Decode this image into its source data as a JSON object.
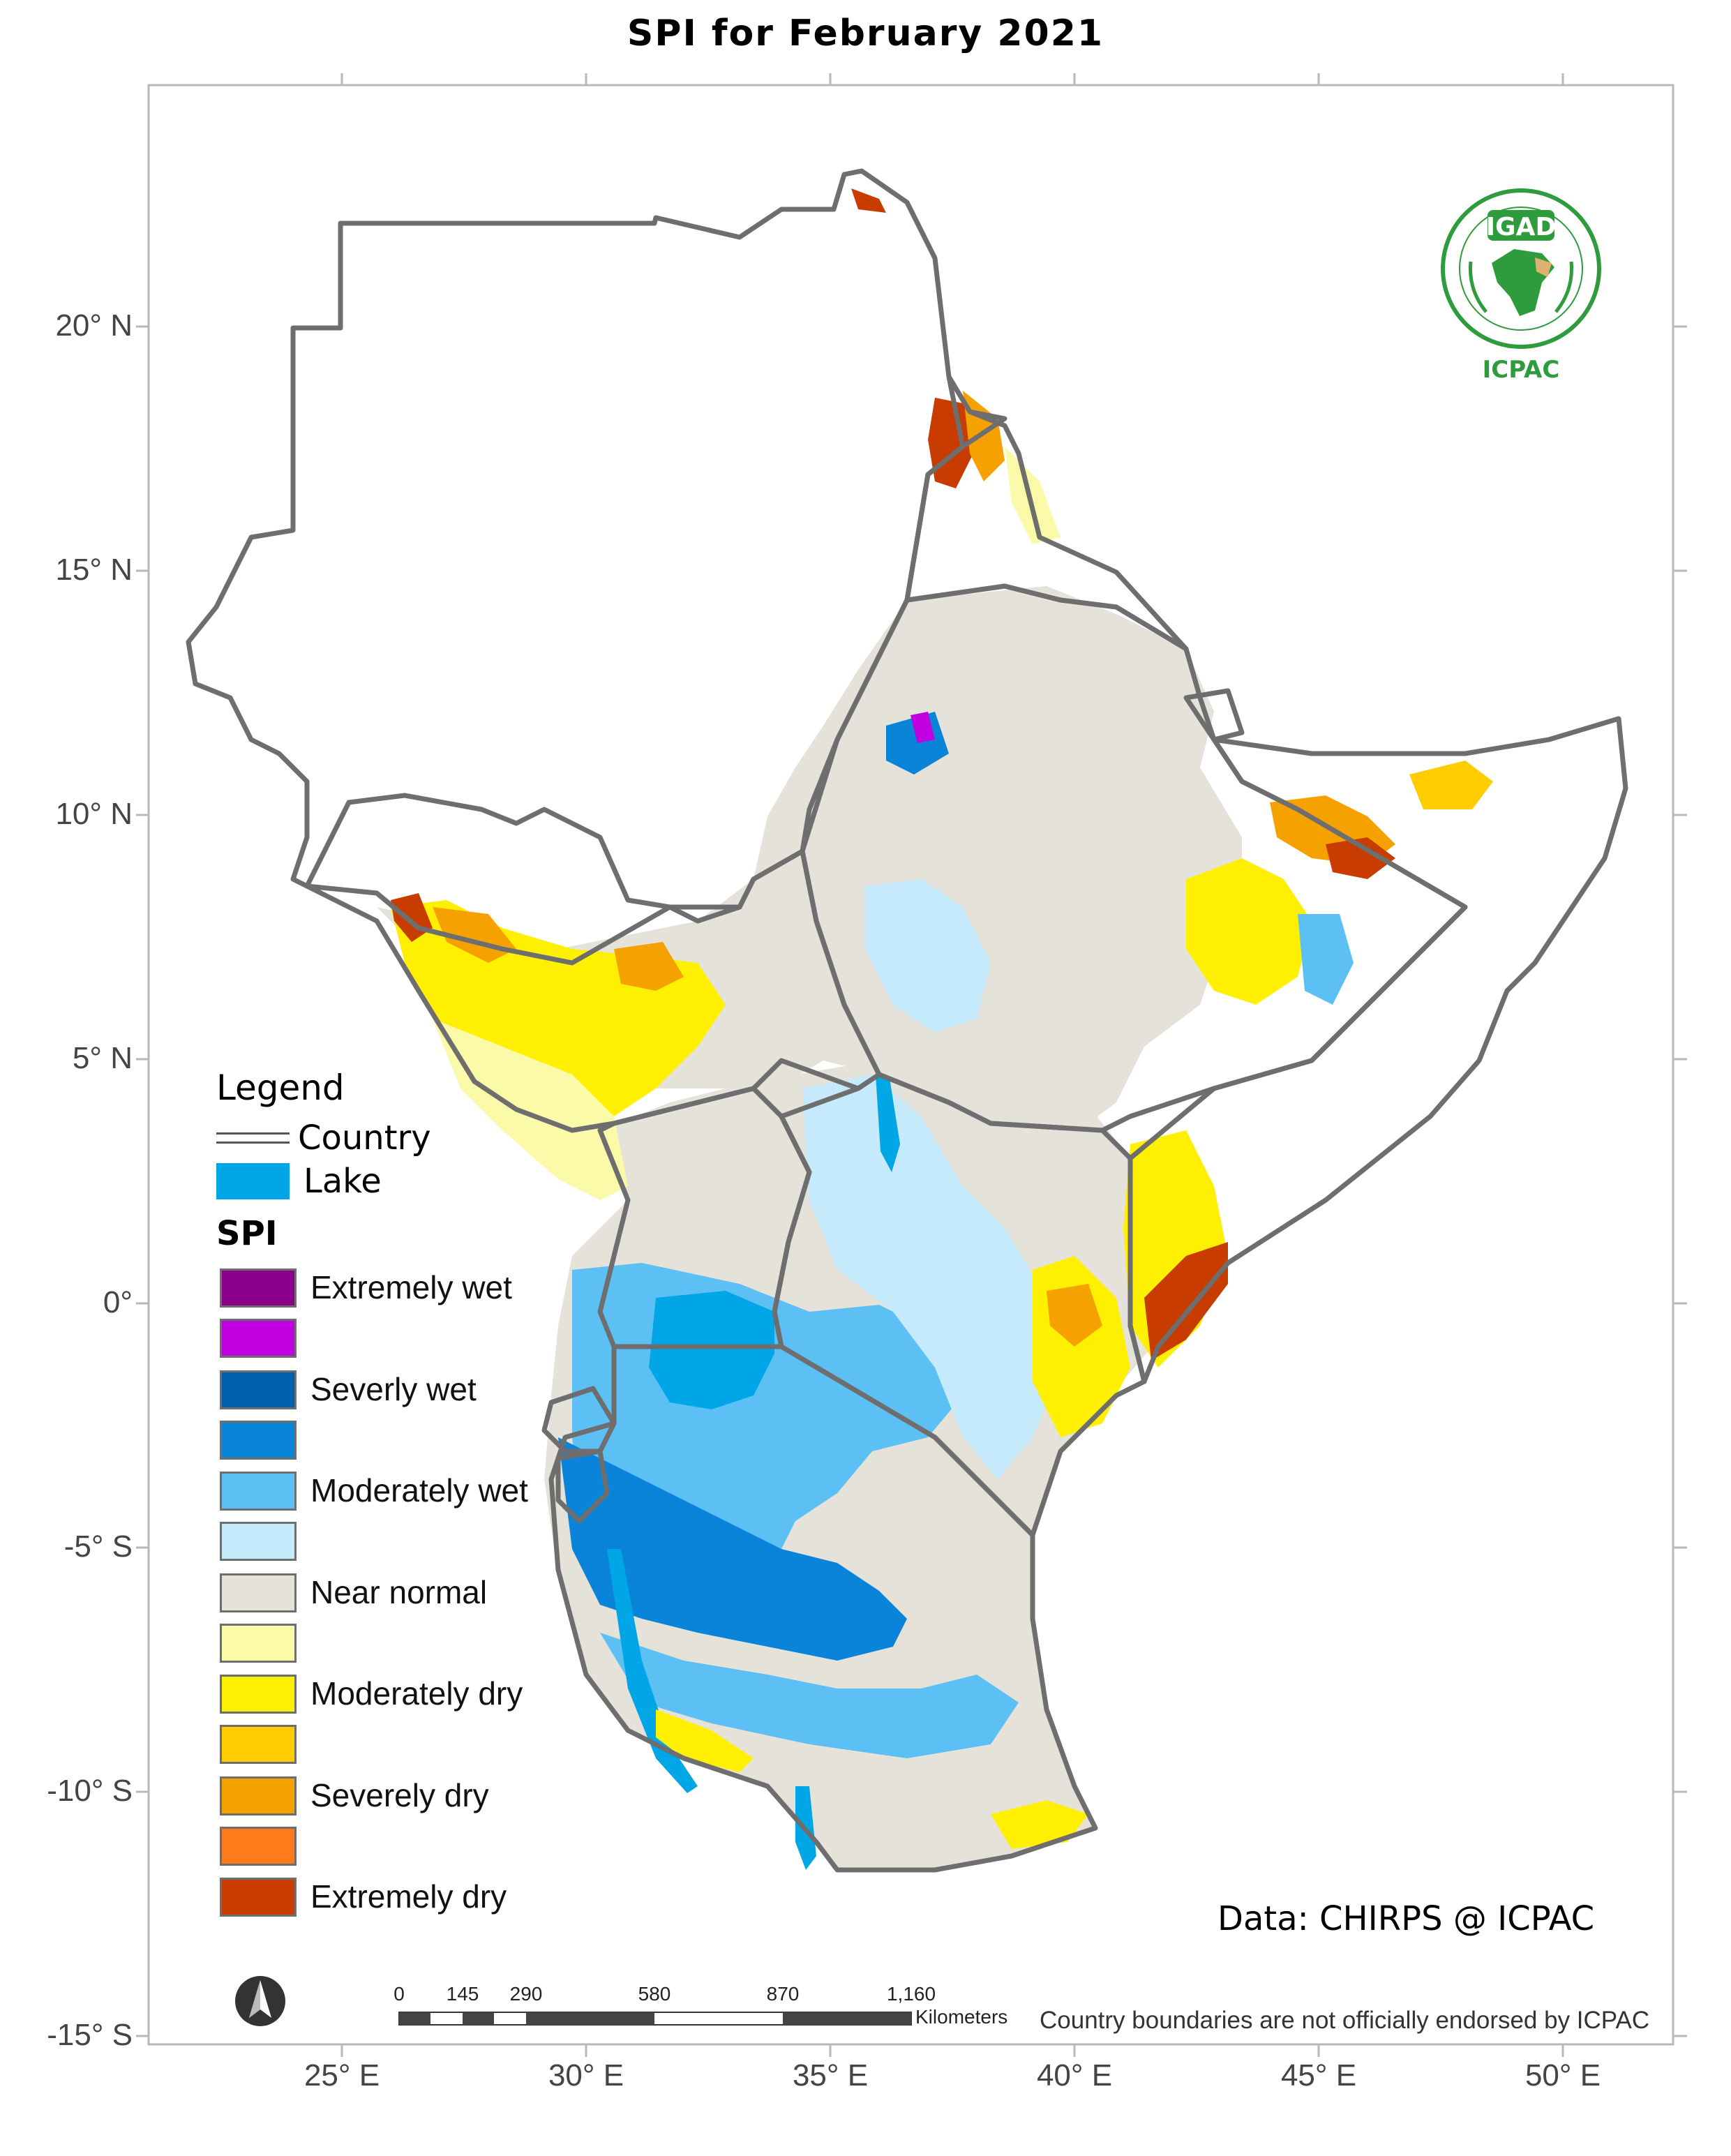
{
  "title": "SPI  for  February 2021",
  "axes": {
    "lat_ticks": [
      "20° N",
      "15° N",
      "10° N",
      "5° N",
      "0°",
      "-5° S",
      "-10° S",
      "-15° S"
    ],
    "lon_ticks": [
      "25° E",
      "30° E",
      "35° E",
      "40° E",
      "45° E",
      "50° E"
    ],
    "lat_range": [
      -15,
      25
    ],
    "lon_range": [
      21,
      52
    ]
  },
  "legend": {
    "title": "Legend",
    "country_label": "Country",
    "lake_label": "Lake",
    "lake_color": "#00a6e6",
    "spi_title": "SPI",
    "spi_classes": [
      {
        "label": "Extremely wet",
        "color_a": "#8b008b",
        "color_b": "#c000e0"
      },
      {
        "label": "Severly wet",
        "color_a": "#0060b0",
        "color_b": "#0a84d8"
      },
      {
        "label": "Moderately wet",
        "color_a": "#5cc0f5",
        "color_b": "#c4eafb"
      },
      {
        "label": "Near normal",
        "color_a": "#e5e2da",
        "color_b": "#fafaa8"
      },
      {
        "label": "Moderately dry",
        "color_a": "#ffef00",
        "color_b": "#ffcc00"
      },
      {
        "label": "Severely dry",
        "color_a": "#f5a200",
        "color_b": "#ff7a1a"
      },
      {
        "label": "Extremely dry",
        "color_a": "#c83c00",
        "color_b": ""
      }
    ]
  },
  "scale_bar": {
    "ticks": [
      "0",
      "145",
      "290",
      "580",
      "870",
      "1,160"
    ],
    "unit": "Kilometers"
  },
  "credit": "Data: CHIRPS @ ICPAC",
  "disclaimer": "Country boundaries are not officially endorsed by ICPAC",
  "logo": {
    "org_short": "IGAD",
    "center_short": "ICPAC",
    "brand_green": "#2e9b3c",
    "brand_tan": "#e0b070"
  },
  "colors": {
    "frame": "#b0b0b0",
    "border": "#6e6e6e",
    "near_normal": "#e5e2da"
  }
}
